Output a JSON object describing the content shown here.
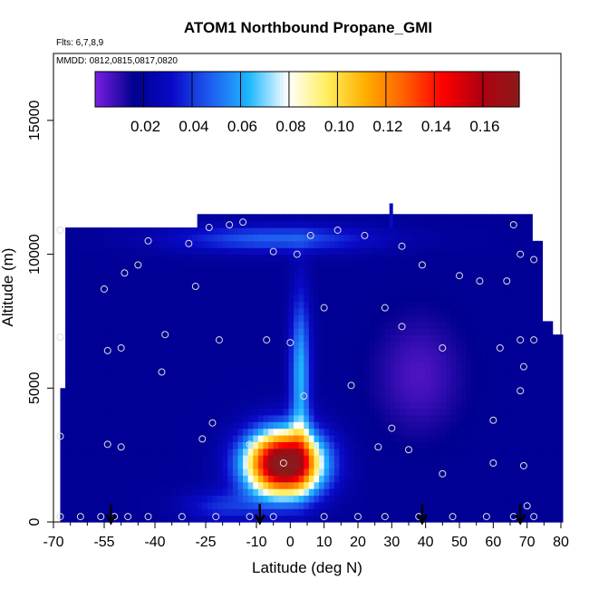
{
  "chart_data": {
    "type": "heatmap",
    "title": "ATOM1 Northbound Propane_GMI",
    "subtitle_lines": [
      "Flts: 6,7,8,9",
      "MMDD: 0812,0815,0817,0820"
    ],
    "xlabel": "Latitude (deg N)",
    "ylabel": "Altitude (m)",
    "xlim": [
      -70,
      80
    ],
    "ylim": [
      0,
      17500
    ],
    "xticks": [
      "-70",
      "-55",
      "-40",
      "-25",
      "-10",
      "0",
      "10",
      "20",
      "30",
      "40",
      "50",
      "60",
      "70",
      "80"
    ],
    "xminor_ticks": [
      -65,
      -60,
      -50,
      -45,
      -35,
      -30,
      -20,
      -15,
      -5,
      5,
      15,
      25,
      35,
      45,
      55,
      65,
      75
    ],
    "yticks": [
      "0",
      "5000",
      "10000",
      "15000"
    ],
    "colorbar": {
      "range": [
        0,
        0.175
      ],
      "tick_values": [
        0.02,
        0.04,
        0.06,
        0.08,
        0.1,
        0.12,
        0.14,
        0.16
      ],
      "tick_labels": [
        "0.02",
        "0.04",
        "0.06",
        "0.08",
        "0.10",
        "0.12",
        "0.14",
        "0.16"
      ],
      "colors": [
        "#7a1fe0",
        "#00008f",
        "#0a0ac8",
        "#1e5ef0",
        "#1fb8ff",
        "#ffffff",
        "#ffef60",
        "#ffb000",
        "#ff6000",
        "#ff0000",
        "#b00010",
        "#8c1a1a"
      ]
    },
    "field": {
      "background": 0.018,
      "features": [
        {
          "name": "tropical-plume",
          "lat": -2,
          "alt": 2200,
          "lat_w": 11,
          "alt_w": 1200,
          "peak": 0.17
        },
        {
          "name": "plume-stem",
          "lat": 3,
          "alt": 5500,
          "lat_w": 3,
          "alt_w": 3000,
          "peak": 0.045
        },
        {
          "name": "upper-band",
          "lat": -5,
          "alt": 10600,
          "lat_w": 30,
          "alt_w": 500,
          "peak": 0.03
        },
        {
          "name": "north-low",
          "lat": 38,
          "alt": 5500,
          "lat_w": 13,
          "alt_w": 2200,
          "peak": -0.012
        },
        {
          "name": "surface-south",
          "lat": -20,
          "alt": 600,
          "lat_w": 12,
          "alt_w": 600,
          "peak": 0.02
        }
      ]
    },
    "sample_points": [
      [
        -68,
        10900
      ],
      [
        -68,
        6900
      ],
      [
        -68,
        3200
      ],
      [
        -68,
        200
      ],
      [
        -62,
        200
      ],
      [
        -56,
        200
      ],
      [
        -55,
        8700
      ],
      [
        -54,
        6400
      ],
      [
        -50,
        6500
      ],
      [
        -49,
        9300
      ],
      [
        -54,
        2900
      ],
      [
        -50,
        2800
      ],
      [
        -45,
        9600
      ],
      [
        -42,
        10500
      ],
      [
        -38,
        5600
      ],
      [
        -37,
        7000
      ],
      [
        -30,
        10400
      ],
      [
        -28,
        8800
      ],
      [
        -24,
        11000
      ],
      [
        -18,
        11100
      ],
      [
        -14,
        11200
      ],
      [
        -21,
        6800
      ],
      [
        -23,
        3700
      ],
      [
        -26,
        3100
      ],
      [
        -12,
        2900
      ],
      [
        -7,
        6800
      ],
      [
        -5,
        10100
      ],
      [
        0,
        6700
      ],
      [
        2,
        10000
      ],
      [
        4,
        4700
      ],
      [
        6,
        10700
      ],
      [
        10,
        8000
      ],
      [
        14,
        10900
      ],
      [
        18,
        5100
      ],
      [
        22,
        10700
      ],
      [
        28,
        8000
      ],
      [
        30,
        3500
      ],
      [
        33,
        7300
      ],
      [
        33,
        10300
      ],
      [
        35,
        2700
      ],
      [
        39,
        9600
      ],
      [
        45,
        6500
      ],
      [
        50,
        9200
      ],
      [
        56,
        9000
      ],
      [
        60,
        3800
      ],
      [
        60,
        2200
      ],
      [
        62,
        6500
      ],
      [
        64,
        9000
      ],
      [
        66,
        11100
      ],
      [
        68,
        10000
      ],
      [
        68,
        6800
      ],
      [
        69,
        5800
      ],
      [
        68,
        4900
      ],
      [
        69,
        2100
      ],
      [
        70,
        600
      ],
      [
        72,
        9800
      ],
      [
        72,
        6800
      ],
      [
        -42,
        200
      ],
      [
        -32,
        200
      ],
      [
        -22,
        200
      ],
      [
        -12,
        200
      ],
      [
        -5,
        200
      ],
      [
        10,
        200
      ],
      [
        20,
        200
      ],
      [
        28,
        200
      ],
      [
        38,
        200
      ],
      [
        48,
        200
      ],
      [
        58,
        200
      ],
      [
        66,
        200
      ],
      [
        72,
        200
      ],
      [
        -52,
        200
      ],
      [
        -48,
        200
      ],
      [
        26,
        2800
      ],
      [
        45,
        1800
      ],
      [
        -2,
        2200
      ]
    ],
    "flight_markers_lat": [
      -53,
      -9,
      39,
      68
    ]
  }
}
